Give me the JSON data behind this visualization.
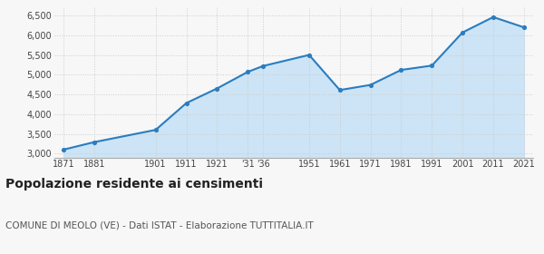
{
  "years": [
    1871,
    1881,
    1901,
    1911,
    1921,
    1931,
    1936,
    1951,
    1961,
    1971,
    1981,
    1991,
    2001,
    2011,
    2021
  ],
  "population": [
    3100,
    3290,
    3600,
    4280,
    4650,
    5070,
    5220,
    5500,
    4610,
    4740,
    5120,
    5230,
    6070,
    6460,
    6200
  ],
  "x_labels": [
    "1871",
    "1881",
    "1901",
    "1911",
    "1921",
    "'31",
    "'36",
    "1951",
    "1961",
    "1971",
    "1981",
    "1991",
    "2001",
    "2011",
    "2021"
  ],
  "line_color": "#2a7dc0",
  "fill_color": "#cce4f5",
  "marker_color": "#2a7dc0",
  "bg_color": "#f7f7f7",
  "grid_color": "#cccccc",
  "axis_line_color": "#aaaaaa",
  "ylim": [
    2900,
    6700
  ],
  "yticks": [
    3000,
    3500,
    4000,
    4500,
    5000,
    5500,
    6000,
    6500
  ],
  "title": "Popolazione residente ai censimenti",
  "subtitle": "COMUNE DI MEOLO (VE) - Dati ISTAT - Elaborazione TUTTITALIA.IT",
  "title_fontsize": 10,
  "subtitle_fontsize": 7.5
}
